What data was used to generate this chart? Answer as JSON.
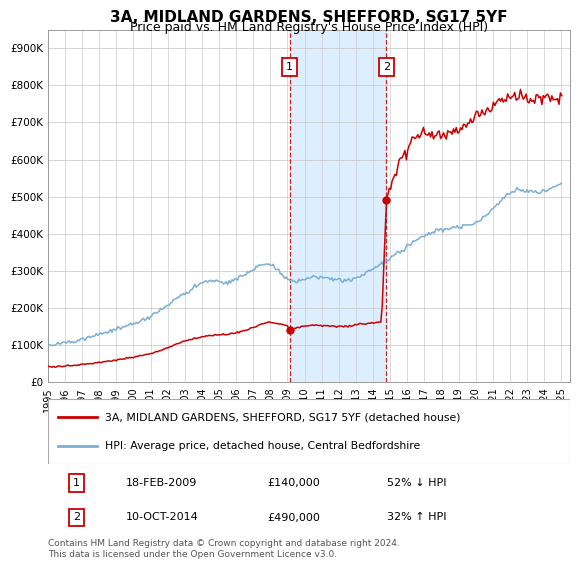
{
  "title": "3A, MIDLAND GARDENS, SHEFFORD, SG17 5YF",
  "subtitle": "Price paid vs. HM Land Registry's House Price Index (HPI)",
  "ylabel_ticks": [
    "£0",
    "£100K",
    "£200K",
    "£300K",
    "£400K",
    "£500K",
    "£600K",
    "£700K",
    "£800K",
    "£900K"
  ],
  "ytick_vals": [
    0,
    100000,
    200000,
    300000,
    400000,
    500000,
    600000,
    700000,
    800000,
    900000
  ],
  "ylim": [
    0,
    950000
  ],
  "xlim_start": 1995.0,
  "xlim_end": 2025.5,
  "sale1_year": 2009.12,
  "sale1_price": 140000,
  "sale2_year": 2014.78,
  "sale2_price": 490000,
  "property_color": "#cc0000",
  "hpi_color": "#7bafd4",
  "shade_color": "#ddeeff",
  "legend_property": "3A, MIDLAND GARDENS, SHEFFORD, SG17 5YF (detached house)",
  "legend_hpi": "HPI: Average price, detached house, Central Bedfordshire",
  "table_row1": [
    "1",
    "18-FEB-2009",
    "£140,000",
    "52% ↓ HPI"
  ],
  "table_row2": [
    "2",
    "10-OCT-2014",
    "£490,000",
    "32% ↑ HPI"
  ],
  "footnote": "Contains HM Land Registry data © Crown copyright and database right 2024.\nThis data is licensed under the Open Government Licence v3.0.",
  "background_color": "#ffffff",
  "grid_color": "#cccccc",
  "title_fontsize": 11,
  "axis_fontsize": 7.5
}
